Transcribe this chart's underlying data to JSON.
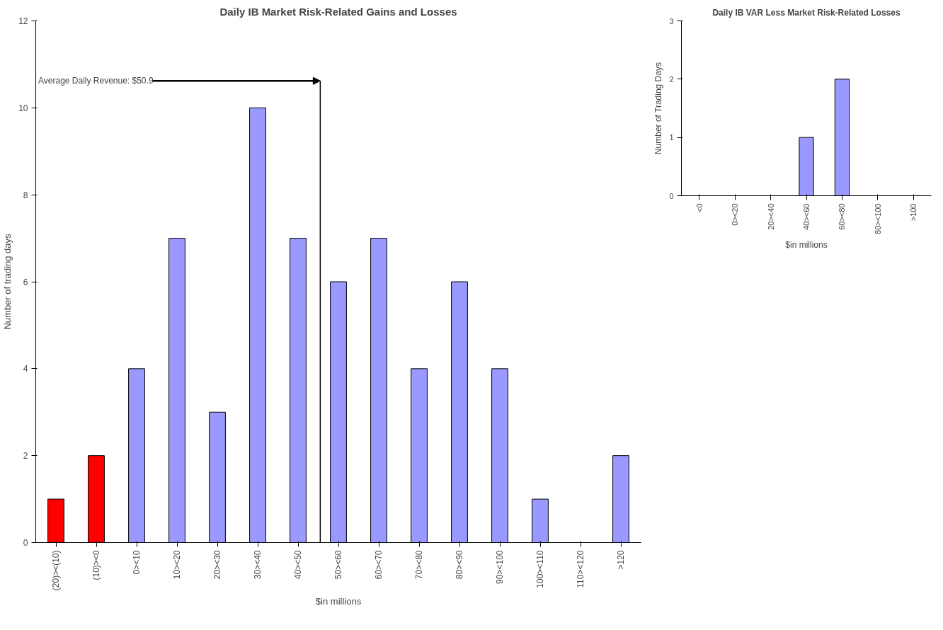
{
  "chart_data": [
    {
      "type": "bar",
      "title": "Daily IB Market Risk-Related Gains and Losses",
      "xlabel": "$in millions",
      "ylabel": "Number of trading days",
      "categories": [
        "(20)><(10)",
        "(10)><0",
        "0><10",
        "10><20",
        "20><30",
        "30><40",
        "40><50",
        "50><60",
        "60><70",
        "70><80",
        "80><90",
        "90><100",
        "100><110",
        "110><120",
        ">120"
      ],
      "values": [
        1,
        2,
        4,
        7,
        3,
        10,
        7,
        6,
        7,
        4,
        6,
        4,
        1,
        0,
        2
      ],
      "colors": [
        "#ff0000",
        "#ff0000",
        "#9999ff",
        "#9999ff",
        "#9999ff",
        "#9999ff",
        "#9999ff",
        "#9999ff",
        "#9999ff",
        "#9999ff",
        "#9999ff",
        "#9999ff",
        "#9999ff",
        "#9999ff",
        "#9999ff"
      ],
      "ylim": [
        0,
        12
      ],
      "yticks": [
        0,
        2,
        4,
        6,
        8,
        10,
        12
      ],
      "grid": false,
      "annotations": [
        "Average Daily Revenue: $50.9"
      ]
    },
    {
      "type": "bar",
      "title": "Daily IB VAR Less Market Risk-Related Losses",
      "xlabel": "$in millions",
      "ylabel": "Number of Trading Days",
      "categories": [
        "<0",
        "0><20",
        "20><40",
        "40><60",
        "60><80",
        "80><100",
        ">100"
      ],
      "values": [
        0,
        0,
        0,
        1,
        2,
        0,
        0
      ],
      "color": "#9999ff",
      "ylim": [
        0,
        3
      ],
      "yticks": [
        0,
        1,
        2,
        3
      ],
      "grid": false
    }
  ]
}
